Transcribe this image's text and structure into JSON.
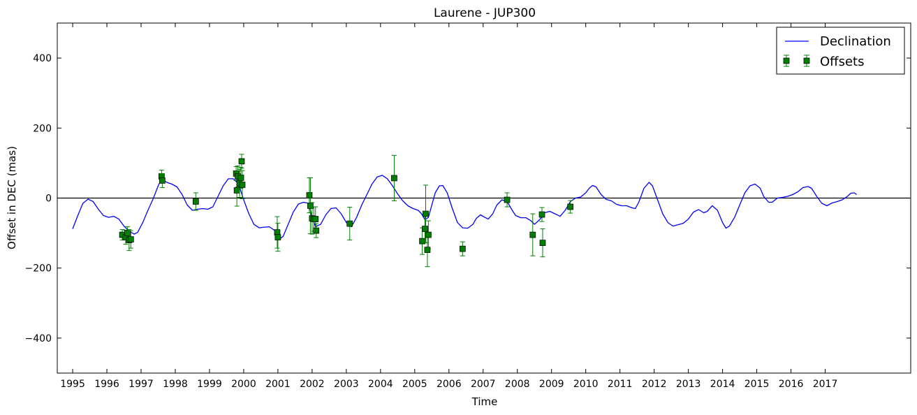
{
  "chart_data": {
    "type": "line",
    "title": "Laurene - JUP300",
    "xlabel": "Time",
    "ylabel": "Offset in DEC (mas)",
    "xlim": [
      1994.55,
      2019.5
    ],
    "ylim": [
      -500,
      500
    ],
    "x_ticks": [
      1995,
      1996,
      1997,
      1998,
      1999,
      2000,
      2001,
      2002,
      2003,
      2004,
      2005,
      2006,
      2007,
      2008,
      2009,
      2010,
      2011,
      2012,
      2013,
      2014,
      2015,
      2016,
      2017
    ],
    "x_tick_labels": [
      "1995",
      "1996",
      "1997",
      "1998",
      "1999",
      "2000",
      "2001",
      "2002",
      "2003",
      "2004",
      "2005",
      "2006",
      "2007",
      "2008",
      "2009",
      "2010",
      "2011",
      "2012",
      "2013",
      "2014",
      "2015",
      "2016",
      "2017"
    ],
    "y_ticks": [
      -400,
      -200,
      0,
      200,
      400
    ],
    "y_tick_labels": [
      "−400",
      "−200",
      "0",
      "200",
      "400"
    ],
    "grid": false,
    "zero_line": 0,
    "legend": {
      "placement": "top-right",
      "entries": [
        "Declination",
        "Offsets"
      ]
    },
    "series": [
      {
        "name": "Declination",
        "kind": "line",
        "color": "#0000ff",
        "points": [
          [
            1995.0,
            -88
          ],
          [
            1995.15,
            -50
          ],
          [
            1995.3,
            -15
          ],
          [
            1995.45,
            -3
          ],
          [
            1995.6,
            -10
          ],
          [
            1995.75,
            -32
          ],
          [
            1995.9,
            -50
          ],
          [
            1996.05,
            -55
          ],
          [
            1996.2,
            -52
          ],
          [
            1996.35,
            -60
          ],
          [
            1996.5,
            -80
          ],
          [
            1996.65,
            -95
          ],
          [
            1996.8,
            -103
          ],
          [
            1996.9,
            -98
          ],
          [
            1997.05,
            -70
          ],
          [
            1997.2,
            -35
          ],
          [
            1997.35,
            -3
          ],
          [
            1997.5,
            35
          ],
          [
            1997.6,
            55
          ],
          [
            1997.75,
            45
          ],
          [
            1997.9,
            40
          ],
          [
            1998.05,
            32
          ],
          [
            1998.2,
            10
          ],
          [
            1998.35,
            -20
          ],
          [
            1998.5,
            -35
          ],
          [
            1998.65,
            -32
          ],
          [
            1998.8,
            -30
          ],
          [
            1998.95,
            -32
          ],
          [
            1999.1,
            -25
          ],
          [
            1999.25,
            5
          ],
          [
            1999.4,
            35
          ],
          [
            1999.55,
            55
          ],
          [
            1999.7,
            55
          ],
          [
            1999.85,
            40
          ],
          [
            2000.0,
            -5
          ],
          [
            2000.15,
            -45
          ],
          [
            2000.3,
            -75
          ],
          [
            2000.45,
            -85
          ],
          [
            2000.6,
            -83
          ],
          [
            2000.75,
            -82
          ],
          [
            2000.9,
            -92
          ],
          [
            2001.0,
            -120
          ],
          [
            2001.15,
            -110
          ],
          [
            2001.3,
            -75
          ],
          [
            2001.45,
            -40
          ],
          [
            2001.6,
            -17
          ],
          [
            2001.75,
            -12
          ],
          [
            2001.9,
            -15
          ],
          [
            2002.0,
            -55
          ],
          [
            2002.1,
            -82
          ],
          [
            2002.25,
            -75
          ],
          [
            2002.4,
            -48
          ],
          [
            2002.55,
            -30
          ],
          [
            2002.7,
            -28
          ],
          [
            2002.85,
            -45
          ],
          [
            2003.0,
            -70
          ],
          [
            2003.15,
            -82
          ],
          [
            2003.3,
            -55
          ],
          [
            2003.45,
            -20
          ],
          [
            2003.6,
            10
          ],
          [
            2003.75,
            40
          ],
          [
            2003.9,
            60
          ],
          [
            2004.05,
            65
          ],
          [
            2004.2,
            55
          ],
          [
            2004.35,
            35
          ],
          [
            2004.5,
            12
          ],
          [
            2004.65,
            -8
          ],
          [
            2004.8,
            -22
          ],
          [
            2004.95,
            -30
          ],
          [
            2005.1,
            -35
          ],
          [
            2005.2,
            -45
          ],
          [
            2005.3,
            -62
          ],
          [
            2005.4,
            -55
          ],
          [
            2005.5,
            -20
          ],
          [
            2005.6,
            15
          ],
          [
            2005.72,
            35
          ],
          [
            2005.82,
            36
          ],
          [
            2005.95,
            15
          ],
          [
            2006.1,
            -30
          ],
          [
            2006.25,
            -70
          ],
          [
            2006.4,
            -85
          ],
          [
            2006.55,
            -86
          ],
          [
            2006.7,
            -75
          ],
          [
            2006.8,
            -58
          ],
          [
            2006.92,
            -48
          ],
          [
            2007.05,
            -55
          ],
          [
            2007.15,
            -60
          ],
          [
            2007.28,
            -45
          ],
          [
            2007.4,
            -20
          ],
          [
            2007.55,
            -5
          ],
          [
            2007.7,
            -10
          ],
          [
            2007.85,
            -35
          ],
          [
            2007.95,
            -50
          ],
          [
            2008.1,
            -56
          ],
          [
            2008.25,
            -56
          ],
          [
            2008.4,
            -65
          ],
          [
            2008.5,
            -75
          ],
          [
            2008.65,
            -62
          ],
          [
            2008.8,
            -42
          ],
          [
            2008.95,
            -38
          ],
          [
            2009.1,
            -45
          ],
          [
            2009.25,
            -52
          ],
          [
            2009.4,
            -35
          ],
          [
            2009.55,
            -10
          ],
          [
            2009.7,
            0
          ],
          [
            2009.85,
            3
          ],
          [
            2010.0,
            15
          ],
          [
            2010.1,
            28
          ],
          [
            2010.2,
            36
          ],
          [
            2010.3,
            32
          ],
          [
            2010.45,
            10
          ],
          [
            2010.6,
            -4
          ],
          [
            2010.75,
            -8
          ],
          [
            2010.9,
            -18
          ],
          [
            2011.05,
            -22
          ],
          [
            2011.2,
            -22
          ],
          [
            2011.35,
            -28
          ],
          [
            2011.45,
            -30
          ],
          [
            2011.55,
            -12
          ],
          [
            2011.7,
            28
          ],
          [
            2011.85,
            45
          ],
          [
            2011.95,
            35
          ],
          [
            2012.1,
            -5
          ],
          [
            2012.25,
            -45
          ],
          [
            2012.4,
            -70
          ],
          [
            2012.55,
            -80
          ],
          [
            2012.7,
            -76
          ],
          [
            2012.85,
            -72
          ],
          [
            2013.0,
            -60
          ],
          [
            2013.15,
            -40
          ],
          [
            2013.3,
            -33
          ],
          [
            2013.45,
            -42
          ],
          [
            2013.55,
            -38
          ],
          [
            2013.7,
            -22
          ],
          [
            2013.85,
            -35
          ],
          [
            2014.0,
            -70
          ],
          [
            2014.1,
            -86
          ],
          [
            2014.2,
            -80
          ],
          [
            2014.35,
            -55
          ],
          [
            2014.5,
            -20
          ],
          [
            2014.65,
            15
          ],
          [
            2014.8,
            35
          ],
          [
            2014.95,
            40
          ],
          [
            2015.1,
            28
          ],
          [
            2015.2,
            5
          ],
          [
            2015.35,
            -12
          ],
          [
            2015.45,
            -12
          ],
          [
            2015.6,
            0
          ],
          [
            2015.75,
            2
          ],
          [
            2015.9,
            5
          ],
          [
            2016.05,
            10
          ],
          [
            2016.2,
            18
          ],
          [
            2016.35,
            30
          ],
          [
            2016.5,
            33
          ],
          [
            2016.6,
            28
          ],
          [
            2016.75,
            5
          ],
          [
            2016.9,
            -15
          ],
          [
            2017.05,
            -22
          ],
          [
            2017.2,
            -14
          ],
          [
            2017.35,
            -10
          ],
          [
            2017.5,
            -5
          ],
          [
            2017.65,
            5
          ],
          [
            2017.75,
            14
          ],
          [
            2017.85,
            15
          ],
          [
            2017.92,
            10
          ]
        ]
      },
      {
        "name": "Offsets",
        "kind": "errorbar",
        "color": "#008000",
        "points": [
          {
            "x": 1996.45,
            "y": -105,
            "err": 15
          },
          {
            "x": 1996.55,
            "y": -112,
            "err": 20
          },
          {
            "x": 1996.6,
            "y": -100,
            "err": 18
          },
          {
            "x": 1996.65,
            "y": -120,
            "err": 30
          },
          {
            "x": 1996.7,
            "y": -118,
            "err": 25
          },
          {
            "x": 1997.6,
            "y": 62,
            "err": 18
          },
          {
            "x": 1997.62,
            "y": 50,
            "err": 20
          },
          {
            "x": 1998.6,
            "y": -10,
            "err": 25
          },
          {
            "x": 1999.78,
            "y": 70,
            "err": 20
          },
          {
            "x": 1999.8,
            "y": 22,
            "err": 45
          },
          {
            "x": 1999.83,
            "y": 62,
            "err": 30
          },
          {
            "x": 1999.88,
            "y": 42,
            "err": 40
          },
          {
            "x": 1999.92,
            "y": 58,
            "err": 30
          },
          {
            "x": 1999.94,
            "y": 105,
            "err": 20
          },
          {
            "x": 1999.96,
            "y": 38,
            "err": 40
          },
          {
            "x": 2000.98,
            "y": -98,
            "err": 45
          },
          {
            "x": 2001.0,
            "y": -112,
            "err": 40
          },
          {
            "x": 2001.92,
            "y": 8,
            "err": 50
          },
          {
            "x": 2001.95,
            "y": -22,
            "err": 80
          },
          {
            "x": 2002.0,
            "y": -58,
            "err": 45
          },
          {
            "x": 2002.05,
            "y": -60,
            "err": 35
          },
          {
            "x": 2002.1,
            "y": -60,
            "err": 35
          },
          {
            "x": 2002.12,
            "y": -93,
            "err": 20
          },
          {
            "x": 2003.1,
            "y": -73,
            "err": 47
          },
          {
            "x": 2004.4,
            "y": 57,
            "err": 65
          },
          {
            "x": 2005.22,
            "y": -123,
            "err": 38
          },
          {
            "x": 2005.3,
            "y": -88,
            "err": 40
          },
          {
            "x": 2005.32,
            "y": -45,
            "err": 82
          },
          {
            "x": 2005.37,
            "y": -148,
            "err": 48
          },
          {
            "x": 2005.4,
            "y": -105,
            "err": 40
          },
          {
            "x": 2006.4,
            "y": -145,
            "err": 20
          },
          {
            "x": 2007.7,
            "y": -5,
            "err": 20
          },
          {
            "x": 2008.45,
            "y": -105,
            "err": 60
          },
          {
            "x": 2008.72,
            "y": -47,
            "err": 20
          },
          {
            "x": 2008.74,
            "y": -128,
            "err": 40
          },
          {
            "x": 2009.55,
            "y": -25,
            "err": 18
          }
        ]
      }
    ]
  }
}
